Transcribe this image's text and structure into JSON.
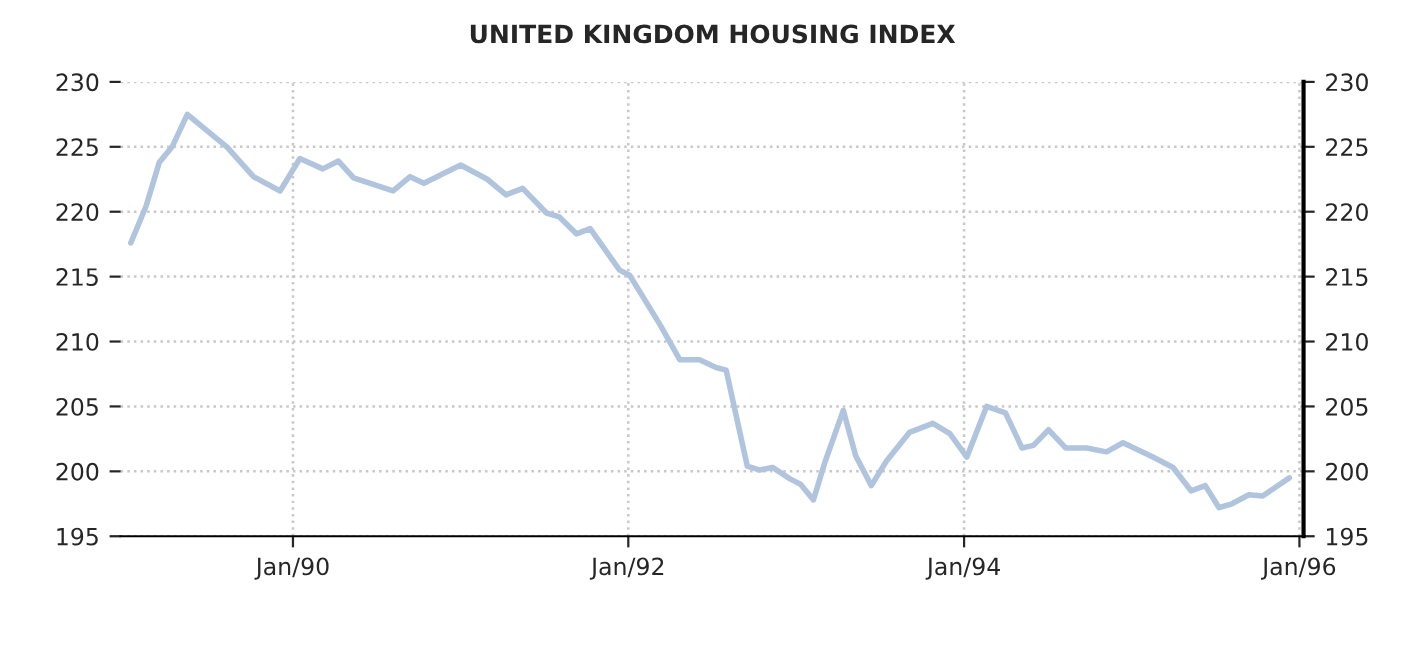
{
  "chart_data": {
    "type": "line",
    "title": "UNITED KINGDOM HOUSING INDEX",
    "x": [
      "1989-01-13",
      "1989-02-15",
      "1989-03-16",
      "1989-04-13",
      "1989-05-16",
      "1989-07-13",
      "1989-08-10",
      "1989-10-07",
      "1989-12-04",
      "1990-01-16",
      "1990-03-07",
      "1990-04-10",
      "1990-05-13",
      "1990-08-07",
      "1990-09-13",
      "1990-10-13",
      "1991-01-01",
      "1991-02-28",
      "1991-04-10",
      "1991-05-16",
      "1991-07-07",
      "1991-08-04",
      "1991-09-10",
      "1991-10-10",
      "1991-12-13",
      "1992-01-04",
      "1992-03-10",
      "1992-04-22",
      "1992-06-04",
      "1992-07-10",
      "1992-08-01",
      "1992-09-16",
      "1992-10-13",
      "1992-11-10",
      "1992-12-19",
      "1993-01-10",
      "1993-02-07",
      "1993-03-04",
      "1993-04-13",
      "1993-05-10",
      "1993-06-13",
      "1993-07-16",
      "1993-09-04",
      "1993-10-25",
      "1993-12-01",
      "1994-01-07",
      "1994-02-19",
      "1994-04-01",
      "1994-05-07",
      "1994-06-01",
      "1994-07-04",
      "1994-08-10",
      "1994-09-25",
      "1994-11-07",
      "1994-12-13",
      "1995-02-16",
      "1995-04-01",
      "1995-05-10",
      "1995-06-10",
      "1995-07-10",
      "1995-08-07",
      "1995-09-13",
      "1995-10-13",
      "1995-12-10"
    ],
    "series": [
      {
        "color": "#b0c4de",
        "values": [
          217.6,
          220.4,
          223.8,
          225.0,
          227.5,
          225.8,
          225.0,
          222.7,
          221.6,
          224.1,
          223.3,
          223.9,
          222.6,
          221.6,
          222.7,
          222.2,
          223.6,
          222.5,
          221.3,
          221.8,
          219.9,
          219.6,
          218.3,
          218.7,
          215.5,
          215.1,
          211.3,
          208.6,
          208.6,
          208.0,
          207.8,
          200.4,
          200.1,
          200.3,
          199.4,
          199.0,
          197.8,
          200.7,
          204.7,
          201.2,
          198.9,
          200.8,
          203.0,
          203.7,
          202.9,
          201.1,
          205.0,
          204.5,
          201.8,
          202.0,
          203.2,
          201.8,
          201.8,
          201.5,
          202.2,
          201.1,
          200.3,
          198.5,
          198.9,
          197.2,
          197.5,
          198.2,
          198.1,
          199.5
        ]
      }
    ],
    "xlim": [
      "1988-12-22",
      "1996-01-10"
    ],
    "xticks": [
      {
        "value": "1990-01-01",
        "label": "Jan/90"
      },
      {
        "value": "1992-01-01",
        "label": "Jan/92"
      },
      {
        "value": "1994-01-01",
        "label": "Jan/94"
      },
      {
        "value": "1996-01-01",
        "label": "Jan/96"
      }
    ],
    "ylim": [
      195,
      230
    ],
    "yticks": [
      195,
      200,
      205,
      210,
      215,
      220,
      225,
      230
    ],
    "y2lim": [
      195,
      230
    ],
    "y2ticks": [
      195,
      200,
      205,
      210,
      215,
      220,
      225,
      230
    ],
    "grid": true,
    "line_style": "solid",
    "marker": "none"
  }
}
